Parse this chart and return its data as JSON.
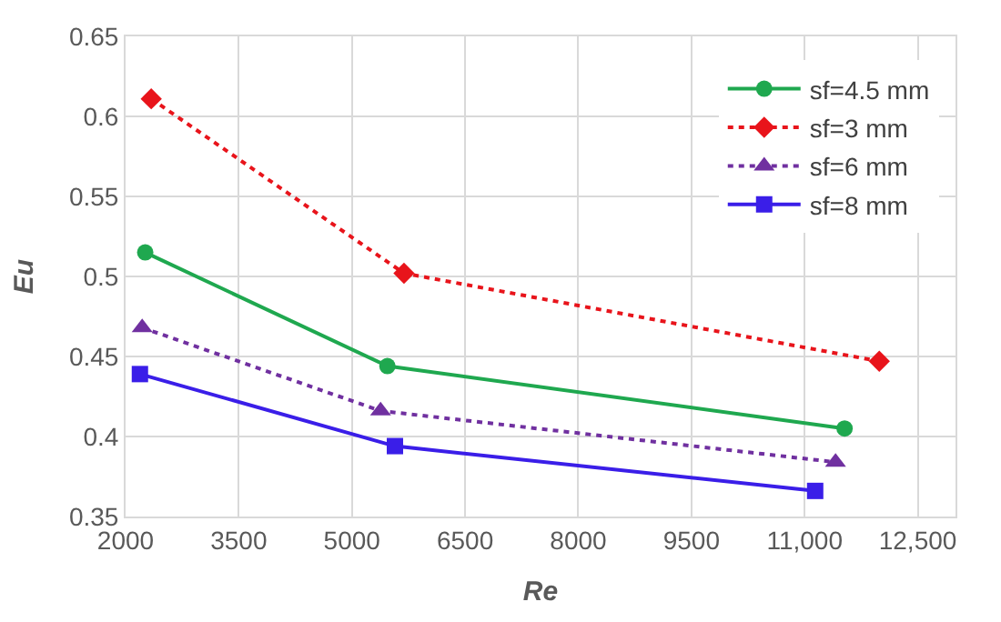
{
  "chart_data": {
    "type": "line",
    "xlabel": "Re",
    "ylabel": "Eu",
    "xlim": [
      2000,
      13000
    ],
    "xticks": [
      2000,
      3500,
      5000,
      6500,
      8000,
      9500,
      {
        "value": 11000,
        "label": "11,000"
      },
      {
        "value": 12500,
        "label": "12,500"
      }
    ],
    "ylim": [
      0.35,
      0.65
    ],
    "yticks": [
      0.35,
      0.4,
      0.45,
      0.5,
      0.55,
      0.6,
      0.65
    ],
    "grid": true,
    "legend": "top right",
    "series": [
      {
        "name": "sf=4.5 mm",
        "color": "#1fa84f",
        "marker": "circle",
        "line_style": "solid",
        "x": [
          2260,
          5470,
          11530
        ],
        "values": [
          0.515,
          0.444,
          0.405
        ]
      },
      {
        "name": "sf=3 mm",
        "color": "#e8141b",
        "marker": "diamond",
        "line_style": "dotted",
        "x": [
          2340,
          5690,
          11990
        ],
        "values": [
          0.611,
          0.502,
          0.447
        ]
      },
      {
        "name": "sf=6 mm",
        "color": "#7030a0",
        "marker": "triangle",
        "line_style": "dotted",
        "x": [
          2220,
          5380,
          11410
        ],
        "values": [
          0.468,
          0.416,
          0.384
        ]
      },
      {
        "name": "sf=8 mm",
        "color": "#3a1ee8",
        "marker": "square",
        "line_style": "solid",
        "x": [
          2190,
          5570,
          11140
        ],
        "values": [
          0.439,
          0.394,
          0.366
        ]
      }
    ]
  }
}
